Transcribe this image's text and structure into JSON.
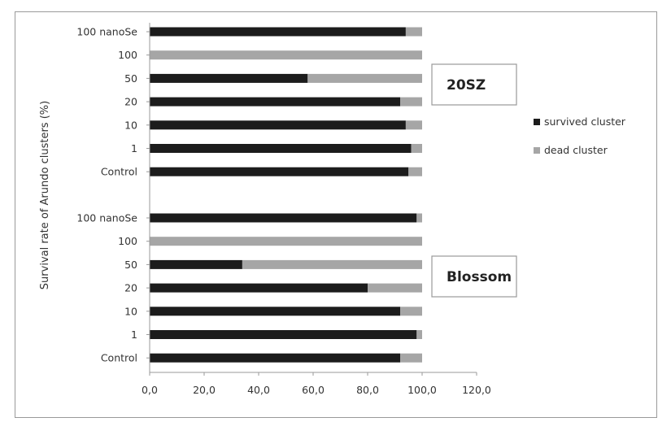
{
  "chart_data": {
    "type": "bar",
    "orientation": "horizontal",
    "stacked": true,
    "ylabel": "Survival rate of Arundo clusters (%)",
    "xlabel": "",
    "xlim": [
      0,
      120
    ],
    "xticks": [
      "0,0",
      "20,0",
      "40,0",
      "60,0",
      "80,0",
      "100,0",
      "120,0"
    ],
    "legend_position": "right",
    "series_styles": [
      {
        "name": "survived cluster",
        "color": "#1c1c1c"
      },
      {
        "name": "dead cluster",
        "color": "#a6a6a6"
      }
    ],
    "groups": [
      {
        "label": "20SZ",
        "categories": [
          "100 nanoSe",
          "100",
          "50",
          "20",
          "10",
          "1",
          "Control"
        ],
        "survived": [
          94,
          0,
          58,
          92,
          94,
          96,
          95
        ],
        "dead": [
          6,
          100,
          42,
          8,
          6,
          4,
          5
        ]
      },
      {
        "label": "Blossom",
        "categories": [
          "100 nanoSe",
          "100",
          "50",
          "20",
          "10",
          "1",
          "Control"
        ],
        "survived": [
          98,
          0,
          34,
          80,
          92,
          98,
          92
        ],
        "dead": [
          2,
          100,
          66,
          20,
          8,
          2,
          8
        ]
      }
    ]
  }
}
